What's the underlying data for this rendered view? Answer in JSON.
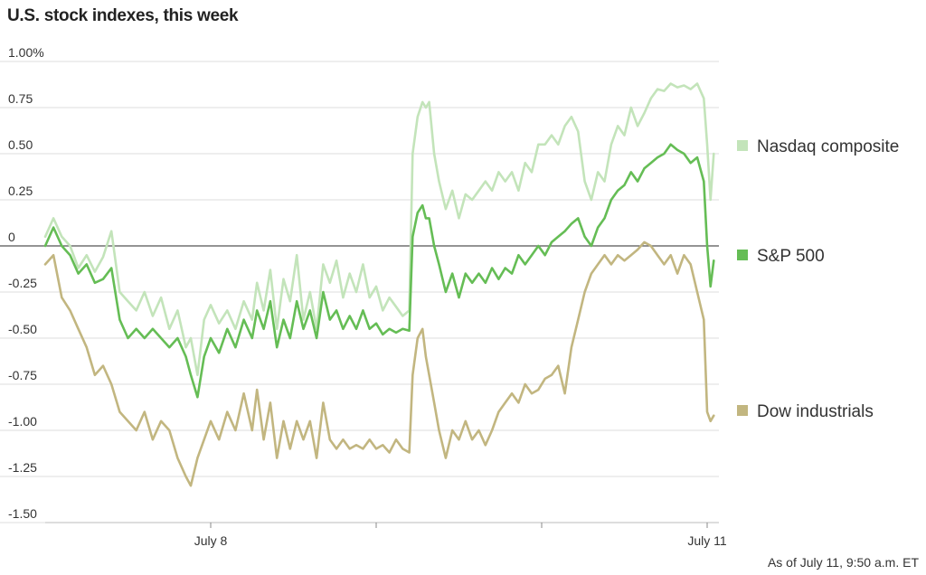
{
  "chart_data": {
    "type": "line",
    "title": "U.S. stock indexes, this week",
    "note": "As of July 11, 9:50 a.m. ET",
    "y_ticks": [
      {
        "value": 1.0,
        "label": "1.00%"
      },
      {
        "value": 0.75,
        "label": "0.75"
      },
      {
        "value": 0.5,
        "label": "0.50"
      },
      {
        "value": 0.25,
        "label": "0.25"
      },
      {
        "value": 0,
        "label": "0"
      },
      {
        "value": -0.25,
        "label": "-0.25"
      },
      {
        "value": -0.5,
        "label": "-0.50"
      },
      {
        "value": -0.75,
        "label": "-0.75"
      },
      {
        "value": -1.0,
        "label": "-1.00"
      },
      {
        "value": -1.25,
        "label": "-1.25"
      },
      {
        "value": -1.5,
        "label": "-1.50"
      }
    ],
    "ylim": [
      -1.5,
      1.0
    ],
    "xlim": [
      0,
      4
    ],
    "x_ticks": [
      {
        "value": 1,
        "label": "July 8"
      },
      {
        "value": 2,
        "label": ""
      },
      {
        "value": 3,
        "label": ""
      },
      {
        "value": 4,
        "label": "July 11"
      }
    ],
    "zero_line": true,
    "grid": true,
    "legend_position": "right",
    "series": [
      {
        "name": "Nasdaq composite",
        "color": "#c3e4ba",
        "points": [
          [
            0.0,
            0.05
          ],
          [
            0.05,
            0.15
          ],
          [
            0.1,
            0.05
          ],
          [
            0.15,
            0.0
          ],
          [
            0.2,
            -0.12
          ],
          [
            0.25,
            -0.05
          ],
          [
            0.3,
            -0.14
          ],
          [
            0.35,
            -0.06
          ],
          [
            0.4,
            0.08
          ],
          [
            0.45,
            -0.25
          ],
          [
            0.5,
            -0.3
          ],
          [
            0.55,
            -0.35
          ],
          [
            0.6,
            -0.25
          ],
          [
            0.65,
            -0.38
          ],
          [
            0.7,
            -0.28
          ],
          [
            0.75,
            -0.45
          ],
          [
            0.8,
            -0.35
          ],
          [
            0.85,
            -0.55
          ],
          [
            0.88,
            -0.5
          ],
          [
            0.92,
            -0.7
          ],
          [
            0.96,
            -0.4
          ],
          [
            1.0,
            -0.32
          ],
          [
            1.05,
            -0.42
          ],
          [
            1.1,
            -0.35
          ],
          [
            1.15,
            -0.45
          ],
          [
            1.2,
            -0.3
          ],
          [
            1.25,
            -0.4
          ],
          [
            1.28,
            -0.2
          ],
          [
            1.32,
            -0.35
          ],
          [
            1.36,
            -0.13
          ],
          [
            1.4,
            -0.45
          ],
          [
            1.44,
            -0.18
          ],
          [
            1.48,
            -0.3
          ],
          [
            1.52,
            -0.05
          ],
          [
            1.56,
            -0.4
          ],
          [
            1.6,
            -0.25
          ],
          [
            1.64,
            -0.45
          ],
          [
            1.68,
            -0.1
          ],
          [
            1.72,
            -0.2
          ],
          [
            1.76,
            -0.08
          ],
          [
            1.8,
            -0.28
          ],
          [
            1.84,
            -0.15
          ],
          [
            1.88,
            -0.25
          ],
          [
            1.92,
            -0.1
          ],
          [
            1.96,
            -0.28
          ],
          [
            2.0,
            -0.22
          ],
          [
            2.04,
            -0.35
          ],
          [
            2.08,
            -0.28
          ],
          [
            2.12,
            -0.33
          ],
          [
            2.16,
            -0.38
          ],
          [
            2.2,
            -0.35
          ],
          [
            2.22,
            0.5
          ],
          [
            2.25,
            0.7
          ],
          [
            2.28,
            0.78
          ],
          [
            2.3,
            0.75
          ],
          [
            2.32,
            0.78
          ],
          [
            2.35,
            0.5
          ],
          [
            2.38,
            0.35
          ],
          [
            2.42,
            0.2
          ],
          [
            2.46,
            0.3
          ],
          [
            2.5,
            0.15
          ],
          [
            2.54,
            0.28
          ],
          [
            2.58,
            0.25
          ],
          [
            2.62,
            0.3
          ],
          [
            2.66,
            0.35
          ],
          [
            2.7,
            0.3
          ],
          [
            2.74,
            0.4
          ],
          [
            2.78,
            0.35
          ],
          [
            2.82,
            0.4
          ],
          [
            2.86,
            0.3
          ],
          [
            2.9,
            0.45
          ],
          [
            2.94,
            0.4
          ],
          [
            2.98,
            0.55
          ],
          [
            3.02,
            0.55
          ],
          [
            3.06,
            0.6
          ],
          [
            3.1,
            0.55
          ],
          [
            3.14,
            0.65
          ],
          [
            3.18,
            0.7
          ],
          [
            3.22,
            0.62
          ],
          [
            3.26,
            0.35
          ],
          [
            3.3,
            0.25
          ],
          [
            3.34,
            0.4
          ],
          [
            3.38,
            0.35
          ],
          [
            3.42,
            0.55
          ],
          [
            3.46,
            0.65
          ],
          [
            3.5,
            0.6
          ],
          [
            3.54,
            0.75
          ],
          [
            3.58,
            0.65
          ],
          [
            3.62,
            0.72
          ],
          [
            3.66,
            0.8
          ],
          [
            3.7,
            0.85
          ],
          [
            3.74,
            0.84
          ],
          [
            3.78,
            0.88
          ],
          [
            3.82,
            0.86
          ],
          [
            3.86,
            0.87
          ],
          [
            3.9,
            0.85
          ],
          [
            3.94,
            0.88
          ],
          [
            3.98,
            0.8
          ],
          [
            4.0,
            0.55
          ],
          [
            4.02,
            0.25
          ],
          [
            4.04,
            0.5
          ]
        ]
      },
      {
        "name": "S&P 500",
        "color": "#65bd55",
        "points": [
          [
            0.0,
            0.0
          ],
          [
            0.05,
            0.1
          ],
          [
            0.1,
            0.0
          ],
          [
            0.15,
            -0.05
          ],
          [
            0.2,
            -0.15
          ],
          [
            0.25,
            -0.1
          ],
          [
            0.3,
            -0.2
          ],
          [
            0.35,
            -0.18
          ],
          [
            0.4,
            -0.12
          ],
          [
            0.45,
            -0.4
          ],
          [
            0.5,
            -0.5
          ],
          [
            0.55,
            -0.45
          ],
          [
            0.6,
            -0.5
          ],
          [
            0.65,
            -0.45
          ],
          [
            0.7,
            -0.5
          ],
          [
            0.75,
            -0.55
          ],
          [
            0.8,
            -0.5
          ],
          [
            0.85,
            -0.6
          ],
          [
            0.88,
            -0.7
          ],
          [
            0.92,
            -0.82
          ],
          [
            0.96,
            -0.6
          ],
          [
            1.0,
            -0.5
          ],
          [
            1.05,
            -0.58
          ],
          [
            1.1,
            -0.45
          ],
          [
            1.15,
            -0.55
          ],
          [
            1.2,
            -0.4
          ],
          [
            1.25,
            -0.5
          ],
          [
            1.28,
            -0.35
          ],
          [
            1.32,
            -0.45
          ],
          [
            1.36,
            -0.3
          ],
          [
            1.4,
            -0.55
          ],
          [
            1.44,
            -0.4
          ],
          [
            1.48,
            -0.5
          ],
          [
            1.52,
            -0.3
          ],
          [
            1.56,
            -0.45
          ],
          [
            1.6,
            -0.35
          ],
          [
            1.64,
            -0.5
          ],
          [
            1.68,
            -0.25
          ],
          [
            1.72,
            -0.4
          ],
          [
            1.76,
            -0.35
          ],
          [
            1.8,
            -0.45
          ],
          [
            1.84,
            -0.38
          ],
          [
            1.88,
            -0.45
          ],
          [
            1.92,
            -0.35
          ],
          [
            1.96,
            -0.45
          ],
          [
            2.0,
            -0.42
          ],
          [
            2.04,
            -0.48
          ],
          [
            2.08,
            -0.45
          ],
          [
            2.12,
            -0.47
          ],
          [
            2.16,
            -0.45
          ],
          [
            2.2,
            -0.46
          ],
          [
            2.22,
            0.05
          ],
          [
            2.25,
            0.18
          ],
          [
            2.28,
            0.22
          ],
          [
            2.3,
            0.15
          ],
          [
            2.32,
            0.15
          ],
          [
            2.35,
            0.0
          ],
          [
            2.38,
            -0.1
          ],
          [
            2.42,
            -0.25
          ],
          [
            2.46,
            -0.15
          ],
          [
            2.5,
            -0.28
          ],
          [
            2.54,
            -0.15
          ],
          [
            2.58,
            -0.2
          ],
          [
            2.62,
            -0.15
          ],
          [
            2.66,
            -0.2
          ],
          [
            2.7,
            -0.12
          ],
          [
            2.74,
            -0.18
          ],
          [
            2.78,
            -0.12
          ],
          [
            2.82,
            -0.15
          ],
          [
            2.86,
            -0.05
          ],
          [
            2.9,
            -0.1
          ],
          [
            2.94,
            -0.05
          ],
          [
            2.98,
            0.0
          ],
          [
            3.02,
            -0.05
          ],
          [
            3.06,
            0.02
          ],
          [
            3.1,
            0.05
          ],
          [
            3.14,
            0.08
          ],
          [
            3.18,
            0.12
          ],
          [
            3.22,
            0.15
          ],
          [
            3.26,
            0.05
          ],
          [
            3.3,
            0.0
          ],
          [
            3.34,
            0.1
          ],
          [
            3.38,
            0.15
          ],
          [
            3.42,
            0.25
          ],
          [
            3.46,
            0.3
          ],
          [
            3.5,
            0.33
          ],
          [
            3.54,
            0.4
          ],
          [
            3.58,
            0.35
          ],
          [
            3.62,
            0.42
          ],
          [
            3.66,
            0.45
          ],
          [
            3.7,
            0.48
          ],
          [
            3.74,
            0.5
          ],
          [
            3.78,
            0.55
          ],
          [
            3.82,
            0.52
          ],
          [
            3.86,
            0.5
          ],
          [
            3.9,
            0.45
          ],
          [
            3.94,
            0.48
          ],
          [
            3.98,
            0.35
          ],
          [
            4.0,
            0.0
          ],
          [
            4.02,
            -0.22
          ],
          [
            4.04,
            -0.08
          ]
        ]
      },
      {
        "name": "Dow industrials",
        "color": "#c2b680",
        "points": [
          [
            0.0,
            -0.1
          ],
          [
            0.05,
            -0.05
          ],
          [
            0.1,
            -0.28
          ],
          [
            0.15,
            -0.35
          ],
          [
            0.2,
            -0.45
          ],
          [
            0.25,
            -0.55
          ],
          [
            0.3,
            -0.7
          ],
          [
            0.35,
            -0.65
          ],
          [
            0.4,
            -0.75
          ],
          [
            0.45,
            -0.9
          ],
          [
            0.5,
            -0.95
          ],
          [
            0.55,
            -1.0
          ],
          [
            0.6,
            -0.9
          ],
          [
            0.65,
            -1.05
          ],
          [
            0.7,
            -0.95
          ],
          [
            0.75,
            -1.0
          ],
          [
            0.8,
            -1.15
          ],
          [
            0.85,
            -1.25
          ],
          [
            0.88,
            -1.3
          ],
          [
            0.92,
            -1.15
          ],
          [
            0.96,
            -1.05
          ],
          [
            1.0,
            -0.95
          ],
          [
            1.05,
            -1.05
          ],
          [
            1.1,
            -0.9
          ],
          [
            1.15,
            -1.0
          ],
          [
            1.2,
            -0.8
          ],
          [
            1.25,
            -1.0
          ],
          [
            1.28,
            -0.78
          ],
          [
            1.32,
            -1.05
          ],
          [
            1.36,
            -0.85
          ],
          [
            1.4,
            -1.15
          ],
          [
            1.44,
            -0.95
          ],
          [
            1.48,
            -1.1
          ],
          [
            1.52,
            -0.95
          ],
          [
            1.56,
            -1.05
          ],
          [
            1.6,
            -0.95
          ],
          [
            1.64,
            -1.15
          ],
          [
            1.68,
            -0.85
          ],
          [
            1.72,
            -1.05
          ],
          [
            1.76,
            -1.1
          ],
          [
            1.8,
            -1.05
          ],
          [
            1.84,
            -1.1
          ],
          [
            1.88,
            -1.08
          ],
          [
            1.92,
            -1.1
          ],
          [
            1.96,
            -1.05
          ],
          [
            2.0,
            -1.1
          ],
          [
            2.04,
            -1.08
          ],
          [
            2.08,
            -1.12
          ],
          [
            2.12,
            -1.05
          ],
          [
            2.16,
            -1.1
          ],
          [
            2.2,
            -1.12
          ],
          [
            2.22,
            -0.7
          ],
          [
            2.25,
            -0.5
          ],
          [
            2.28,
            -0.45
          ],
          [
            2.3,
            -0.6
          ],
          [
            2.32,
            -0.7
          ],
          [
            2.35,
            -0.85
          ],
          [
            2.38,
            -1.0
          ],
          [
            2.42,
            -1.15
          ],
          [
            2.46,
            -1.0
          ],
          [
            2.5,
            -1.05
          ],
          [
            2.54,
            -0.95
          ],
          [
            2.58,
            -1.05
          ],
          [
            2.62,
            -1.0
          ],
          [
            2.66,
            -1.08
          ],
          [
            2.7,
            -1.0
          ],
          [
            2.74,
            -0.9
          ],
          [
            2.78,
            -0.85
          ],
          [
            2.82,
            -0.8
          ],
          [
            2.86,
            -0.85
          ],
          [
            2.9,
            -0.75
          ],
          [
            2.94,
            -0.8
          ],
          [
            2.98,
            -0.78
          ],
          [
            3.02,
            -0.72
          ],
          [
            3.06,
            -0.7
          ],
          [
            3.1,
            -0.65
          ],
          [
            3.14,
            -0.8
          ],
          [
            3.18,
            -0.55
          ],
          [
            3.22,
            -0.4
          ],
          [
            3.26,
            -0.25
          ],
          [
            3.3,
            -0.15
          ],
          [
            3.34,
            -0.1
          ],
          [
            3.38,
            -0.05
          ],
          [
            3.42,
            -0.1
          ],
          [
            3.46,
            -0.05
          ],
          [
            3.5,
            -0.08
          ],
          [
            3.54,
            -0.05
          ],
          [
            3.58,
            -0.02
          ],
          [
            3.62,
            0.02
          ],
          [
            3.66,
            0.0
          ],
          [
            3.7,
            -0.05
          ],
          [
            3.74,
            -0.1
          ],
          [
            3.78,
            -0.05
          ],
          [
            3.82,
            -0.15
          ],
          [
            3.86,
            -0.05
          ],
          [
            3.9,
            -0.1
          ],
          [
            3.94,
            -0.25
          ],
          [
            3.98,
            -0.4
          ],
          [
            4.0,
            -0.9
          ],
          [
            4.02,
            -0.95
          ],
          [
            4.04,
            -0.92
          ]
        ]
      }
    ]
  }
}
